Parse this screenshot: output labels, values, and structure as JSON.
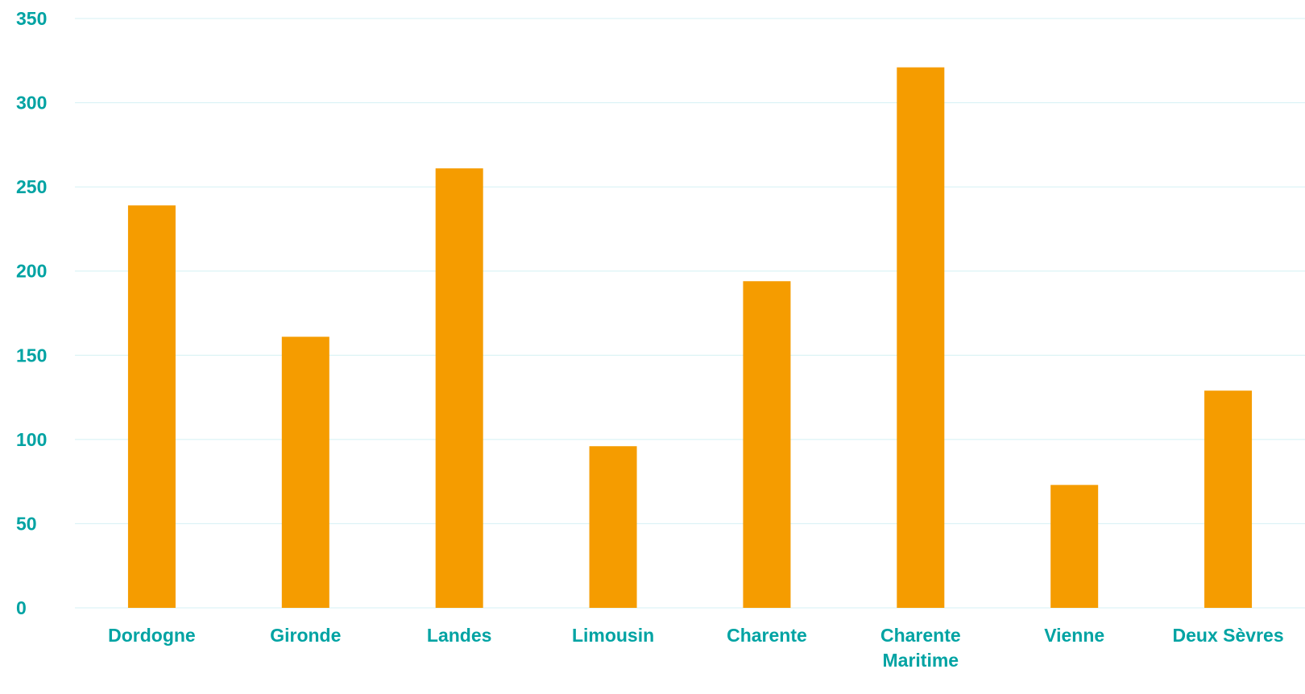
{
  "chart_data": {
    "type": "bar",
    "categories": [
      "Dordogne",
      "Gironde",
      "Landes",
      "Limousin",
      "Charente",
      "Charente Maritime",
      "Vienne",
      "Deux Sèvres"
    ],
    "category_lines": [
      [
        "Dordogne"
      ],
      [
        "Gironde"
      ],
      [
        "Landes"
      ],
      [
        "Limousin"
      ],
      [
        "Charente"
      ],
      [
        "Charente",
        "Maritime"
      ],
      [
        "Vienne"
      ],
      [
        "Deux Sèvres"
      ]
    ],
    "values": [
      239,
      161,
      261,
      96,
      194,
      321,
      73,
      129
    ],
    "title": "",
    "xlabel": "",
    "ylabel": "",
    "ylim": [
      0,
      350
    ],
    "yticks": [
      0,
      50,
      100,
      150,
      200,
      250,
      300,
      350
    ],
    "grid": true,
    "legend": "none",
    "colors": {
      "bar": "#F59C00",
      "label": "#00A3A3",
      "grid": "#D4F1F4"
    }
  }
}
